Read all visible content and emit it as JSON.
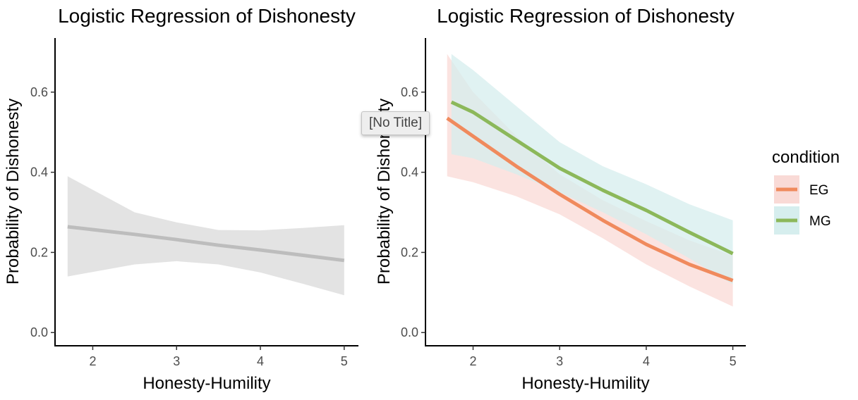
{
  "colors": {
    "overall_ci": "#d9d9d9",
    "overall_line": "#bdbdbd",
    "EG": "#f08a5d",
    "MG": "#8cb85a",
    "EG_ci": "#f9dad6",
    "MG_ci": "#d6eeee",
    "axis": "#000000",
    "tick_text": "#4d4d4d"
  },
  "tooltip": {
    "text": "[No Title]"
  },
  "chart_data": [
    {
      "type": "line",
      "title": "Logistic Regression of Dishonesty",
      "xlabel": "Honesty-Humility",
      "ylabel": "Probability of Dishonesty",
      "xlim": [
        1.55,
        5.17
      ],
      "ylim": [
        -0.033,
        0.735
      ],
      "xticks": [
        2,
        3,
        4,
        5
      ],
      "yticks": [
        0.0,
        0.2,
        0.4,
        0.6
      ],
      "xtick_labels": [
        "2",
        "3",
        "4",
        "5"
      ],
      "ytick_labels": [
        "0.0",
        "0.2",
        "0.4",
        "0.6"
      ],
      "grid": false,
      "series": [
        {
          "color_key": "overall_line",
          "ci_color_key": "overall_ci",
          "x": [
            1.7,
            2.5,
            3.0,
            3.5,
            4.0,
            4.5,
            5.0
          ],
          "y": [
            0.264,
            0.245,
            0.232,
            0.218,
            0.206,
            0.193,
            0.18
          ],
          "lower": [
            0.14,
            0.17,
            0.178,
            0.17,
            0.15,
            0.122,
            0.093
          ],
          "upper": [
            0.39,
            0.3,
            0.275,
            0.256,
            0.255,
            0.261,
            0.268
          ]
        }
      ]
    },
    {
      "type": "line",
      "title": "Logistic Regression of Dishonesty",
      "xlabel": "Honesty-Humility",
      "ylabel": "Probability of Dishonesty",
      "xlim": [
        1.45,
        5.15
      ],
      "ylim": [
        -0.033,
        0.735
      ],
      "xticks": [
        2,
        3,
        4,
        5
      ],
      "yticks": [
        0.0,
        0.2,
        0.4,
        0.6
      ],
      "xtick_labels": [
        "2",
        "3",
        "4",
        "5"
      ],
      "ytick_labels": [
        "0.0",
        "0.2",
        "0.4",
        "0.6"
      ],
      "grid": false,
      "legend": {
        "title": "condition",
        "position": "right"
      },
      "series": [
        {
          "name": "EG",
          "color_key": "EG",
          "ci_color_key": "EG_ci",
          "x": [
            1.7,
            2.0,
            2.5,
            3.0,
            3.5,
            4.0,
            4.5,
            5.0
          ],
          "y": [
            0.535,
            0.49,
            0.415,
            0.345,
            0.28,
            0.22,
            0.17,
            0.13
          ],
          "lower": [
            0.39,
            0.375,
            0.34,
            0.295,
            0.235,
            0.17,
            0.115,
            0.065
          ],
          "upper": [
            0.695,
            0.6,
            0.49,
            0.395,
            0.33,
            0.278,
            0.23,
            0.192
          ]
        },
        {
          "name": "MG",
          "color_key": "MG",
          "ci_color_key": "MG_ci",
          "x": [
            1.75,
            2.0,
            2.5,
            3.0,
            3.5,
            4.0,
            4.5,
            5.0
          ],
          "y": [
            0.575,
            0.55,
            0.48,
            0.41,
            0.355,
            0.305,
            0.25,
            0.197
          ],
          "lower": [
            0.445,
            0.435,
            0.395,
            0.35,
            0.3,
            0.245,
            0.185,
            0.12
          ],
          "upper": [
            0.695,
            0.655,
            0.565,
            0.475,
            0.415,
            0.37,
            0.32,
            0.28
          ]
        }
      ]
    }
  ]
}
